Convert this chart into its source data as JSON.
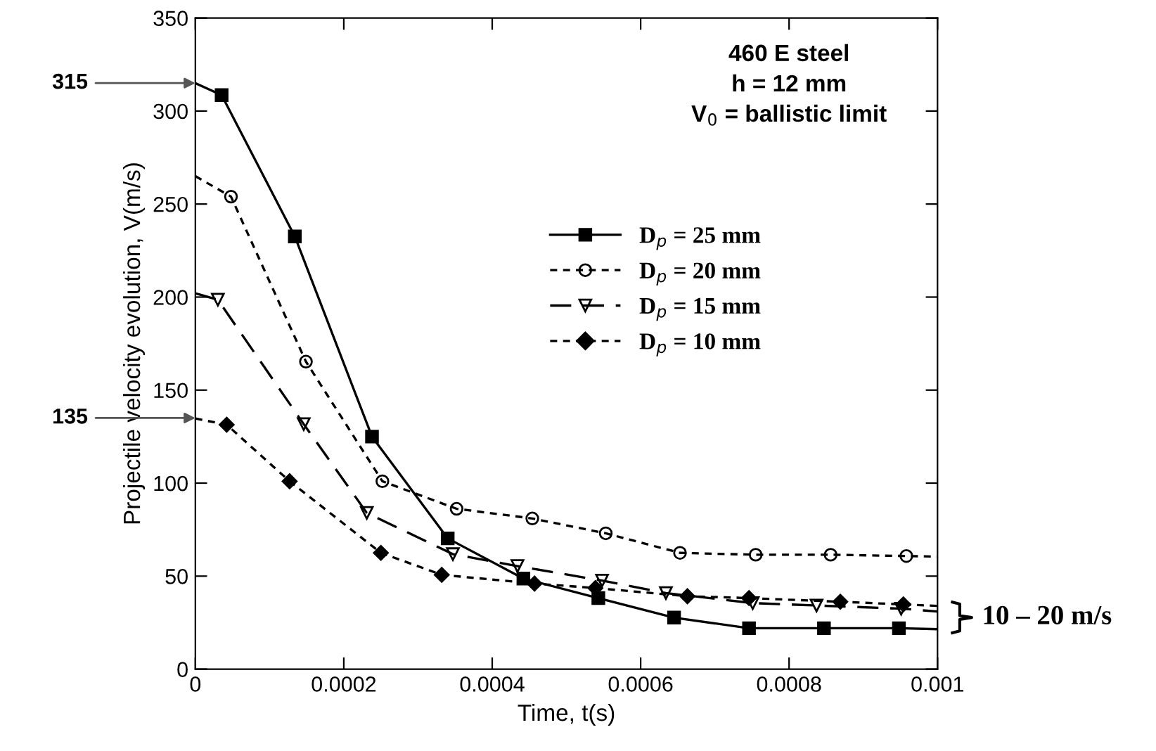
{
  "chart_data": {
    "type": "line",
    "xlabel": "Time, t(s)",
    "ylabel": "Projectile velocity evolution, V(m/s)",
    "xlim": [
      0,
      0.001
    ],
    "ylim": [
      0,
      350
    ],
    "xticks": [
      0,
      0.0002,
      0.0004,
      0.0006,
      0.0008,
      0.001
    ],
    "yticks": [
      0,
      50,
      100,
      150,
      200,
      250,
      300,
      350
    ],
    "grid": false,
    "legend": "center",
    "series": [
      {
        "color": "#000000",
        "line_style": "solid",
        "x": [
          0,
          3.54e-05,
          0.000134,
          0.000238,
          0.00034,
          0.000442,
          0.000543,
          0.000645,
          0.000746,
          0.000847,
          0.000948,
          0.001
        ],
        "values": [
          315,
          308.6,
          232.6,
          125,
          70.3,
          48.7,
          38.2,
          27.7,
          22,
          22,
          22,
          21.5
        ]
      },
      {
        "type": "scatter",
        "name": "D$_{p}$ = 25 mm",
        "color": "#000000",
        "marker": "square",
        "x": [
          3.54e-05,
          0.000134,
          0.000238,
          0.00034,
          0.000442,
          0.000543,
          0.000645,
          0.000746,
          0.000847,
          0.000948
        ],
        "values": [
          308.6,
          232.6,
          125,
          70.3,
          48.7,
          38.2,
          27.7,
          22,
          22,
          22
        ]
      },
      {
        "color": "#000000",
        "line_style": "dotted",
        "x": [
          0,
          4.8e-05,
          0.000149,
          0.000252,
          0.000352,
          0.000454,
          0.000553,
          0.000653,
          0.000755,
          0.000856,
          0.000958,
          0.001
        ],
        "values": [
          265,
          254,
          165.3,
          101,
          86.2,
          81,
          73,
          62.5,
          61.5,
          61.5,
          60.8,
          60.5
        ]
      },
      {
        "type": "scatter",
        "name": "D$_{p}$ = 20 mm",
        "color": "#000000",
        "marker": "circle",
        "x": [
          4.8e-05,
          0.000149,
          0.000252,
          0.000352,
          0.000454,
          0.000553,
          0.000653,
          0.000755,
          0.000856,
          0.000958
        ],
        "values": [
          254,
          165.3,
          101,
          86.2,
          81,
          73,
          62.5,
          61.5,
          61.5,
          60.8
        ]
      },
      {
        "color": "#000000",
        "line_style": "dashed",
        "x": [
          0,
          3.03e-05,
          0.000146,
          0.000231,
          0.000347,
          0.000434,
          0.000548,
          0.000634,
          0.000751,
          0.000837,
          0.000951,
          0.001
        ],
        "values": [
          202,
          198.6,
          131.7,
          84,
          61.8,
          55.4,
          47.6,
          40.9,
          35.5,
          34.2,
          32.5,
          31
        ]
      },
      {
        "type": "scatter",
        "name": "D$_{p}$ = 15 mm",
        "color": "#000000",
        "marker": "triangle",
        "x": [
          3.03e-05,
          0.000146,
          0.000231,
          0.000347,
          0.000434,
          0.000548,
          0.000634,
          0.000751,
          0.000837,
          0.000951
        ],
        "values": [
          198.6,
          131.7,
          84,
          61.8,
          55.4,
          47.6,
          40.9,
          35.5,
          34.2,
          32.5
        ]
      },
      {
        "color": "#000000",
        "line_style": "dotted",
        "x": [
          0,
          4.22e-05,
          0.000127,
          0.00025,
          0.000332,
          0.000457,
          0.000539,
          0.000663,
          0.000746,
          0.000869,
          0.000954,
          0.001
        ],
        "values": [
          134.7,
          131.4,
          101,
          62.5,
          50.7,
          46,
          43.6,
          39.2,
          38.2,
          36.2,
          34.8,
          34
        ]
      },
      {
        "type": "scatter",
        "name": "D$_{p}$ = 10 mm",
        "color": "#000000",
        "marker": "diamond",
        "x": [
          4.22e-05,
          0.000127,
          0.00025,
          0.000332,
          0.000457,
          0.000539,
          0.000663,
          0.000746,
          0.000869,
          0.000954
        ],
        "values": [
          131.4,
          101,
          62.5,
          50.7,
          46,
          43.6,
          39.2,
          38.2,
          36.2,
          34.8
        ]
      }
    ],
    "annotations": [
      {
        "text": "315",
        "x": 0,
        "y": 315
      },
      {
        "text": "135",
        "x": 0,
        "y": 135
      },
      "460 E steel\nh = 12 mm\nV$_{0}$ = ballistic limit",
      "10 – 20 m/s"
    ]
  }
}
